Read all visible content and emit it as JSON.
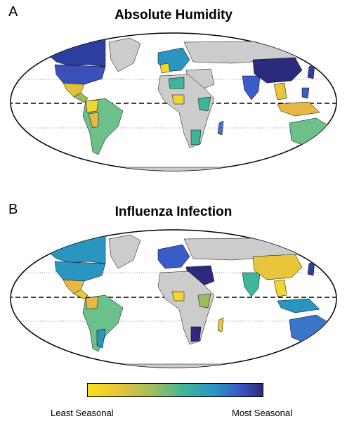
{
  "panelA": {
    "letter": "A",
    "title": "Absolute Humidity"
  },
  "panelB": {
    "letter": "B",
    "title": "Influenza Infection"
  },
  "legend": {
    "low_label": "Least Seasonal",
    "high_label": "Most Seasonal",
    "colors": [
      "#f7e21c",
      "#e8c53a",
      "#9bbd5f",
      "#3fb59a",
      "#2a95c0",
      "#3a5cc8",
      "#2c2a7c"
    ]
  },
  "colors": {
    "no_data": "#cccccc",
    "ocean": "#ffffff"
  }
}
